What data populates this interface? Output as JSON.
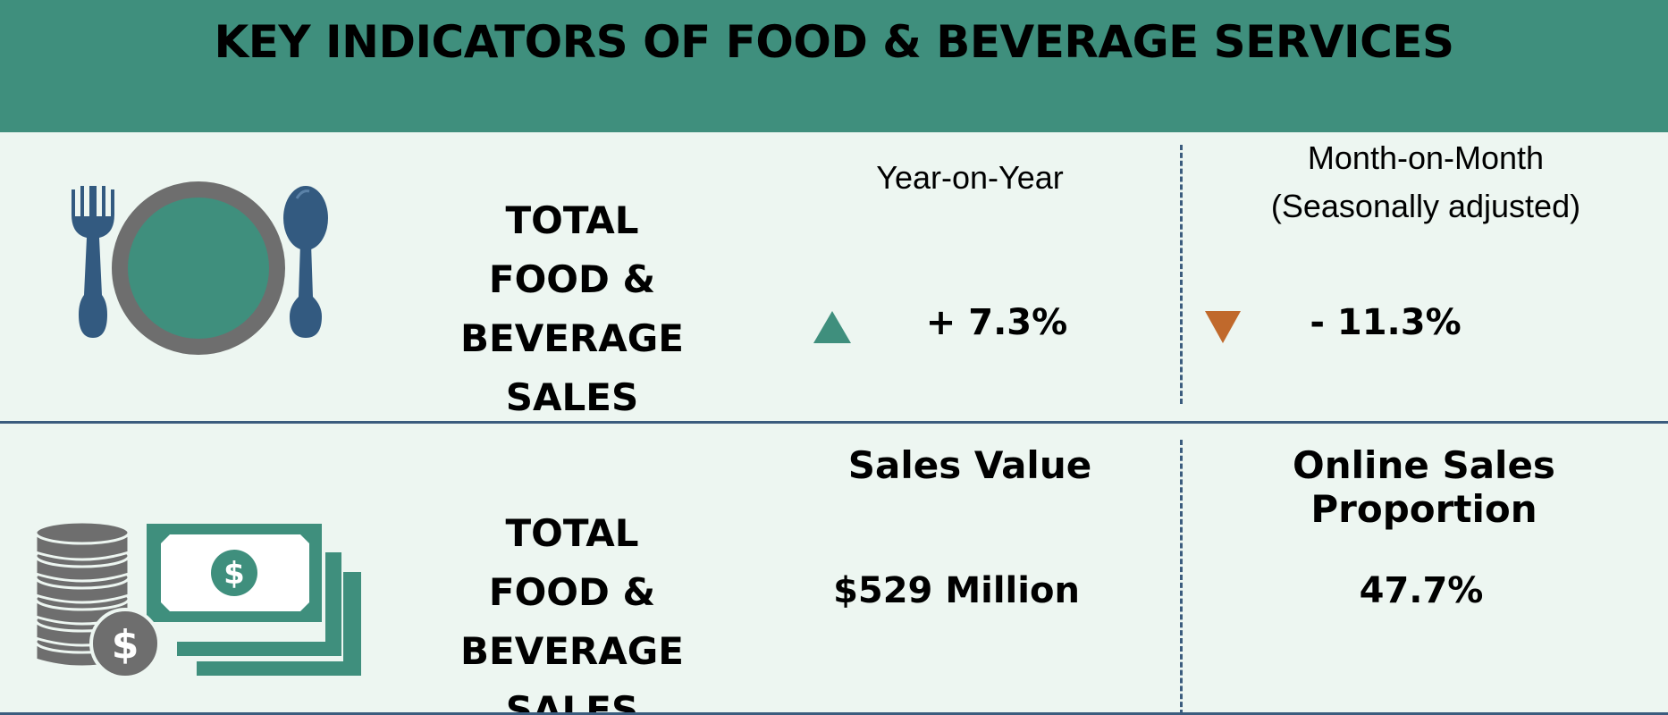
{
  "header": {
    "title": "KEY INDICATORS OF FOOD & BEVERAGE SERVICES"
  },
  "row1": {
    "title_lines": [
      "TOTAL",
      "FOOD &",
      "BEVERAGE SALES"
    ],
    "yoy": {
      "label": "Year-on-Year",
      "value": "+ 7.3%",
      "direction": "up",
      "color": "#3f8f7d"
    },
    "mom": {
      "label_line1": "Month-on-Month",
      "label_line2": "(Seasonally adjusted)",
      "value": "- 11.3%",
      "direction": "down",
      "color": "#c0692c"
    },
    "icon": "plate-cutlery-icon"
  },
  "row2": {
    "title_lines": [
      "TOTAL",
      "FOOD &",
      "BEVERAGE SALES"
    ],
    "sales_value": {
      "label": "Sales Value",
      "value": "$529 Million"
    },
    "online_proportion": {
      "label": "Online Sales Proportion",
      "value": "47.7%"
    },
    "icon": "money-coins-icon"
  },
  "colors": {
    "header_bg": "#3f8f7d",
    "page_bg": "#edf6f1",
    "accent_blue": "#335a80",
    "grey": "#6e6e6e",
    "teal": "#3f8f7d"
  }
}
